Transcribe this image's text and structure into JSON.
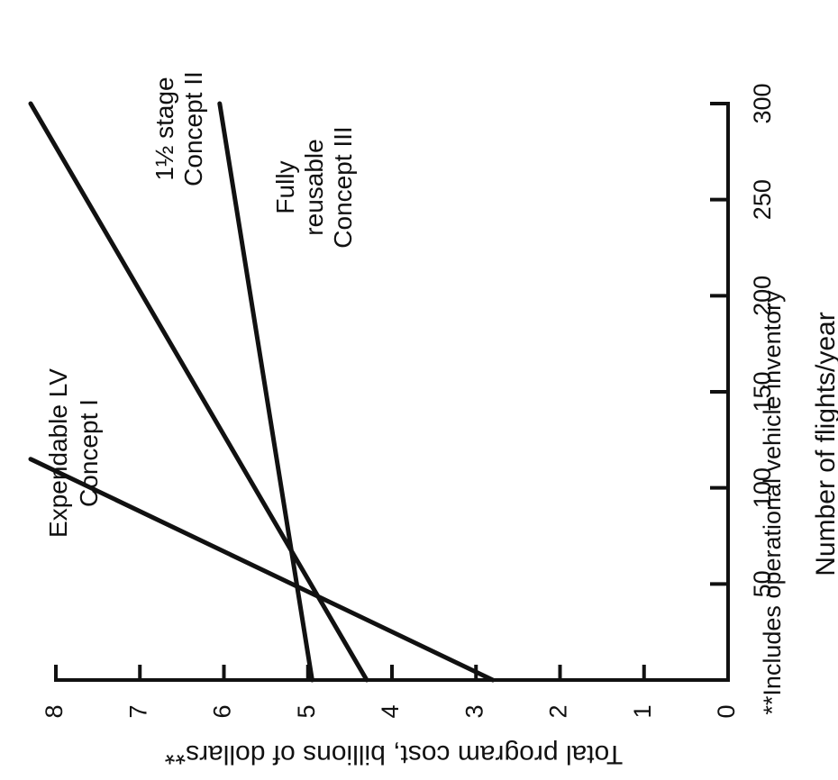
{
  "chart_data": {
    "type": "line",
    "xlabel": "Number of flights/year",
    "ylabel": "Total program cost, billions of dollars**",
    "footnote": "**Includes operational vehicle inventory",
    "xlim": [
      0,
      300
    ],
    "ylim": [
      0,
      8
    ],
    "x_ticks": [
      {
        "value": 50,
        "label": "50"
      },
      {
        "value": 100,
        "label": "100"
      },
      {
        "value": 150,
        "label": "150"
      },
      {
        "value": 200,
        "label": "200"
      },
      {
        "value": 250,
        "label": "250"
      },
      {
        "value": 300,
        "label": "300"
      }
    ],
    "y_ticks": [
      {
        "value": 0,
        "label": "0"
      },
      {
        "value": 1,
        "label": "1"
      },
      {
        "value": 2,
        "label": "2"
      },
      {
        "value": 3,
        "label": "3"
      },
      {
        "value": 4,
        "label": "4"
      },
      {
        "value": 5,
        "label": "5"
      },
      {
        "value": 6,
        "label": "6"
      },
      {
        "value": 7,
        "label": "7"
      },
      {
        "value": 8,
        "label": "8"
      }
    ],
    "series": [
      {
        "name_lines": [
          "Expendable LV",
          "Concept I"
        ],
        "points": [
          {
            "x": 0,
            "y": 2.8
          },
          {
            "x": 115,
            "y": 8.3
          }
        ]
      },
      {
        "name_lines": [
          "1½ stage",
          "Concept II"
        ],
        "points": [
          {
            "x": 0,
            "y": 4.3
          },
          {
            "x": 300,
            "y": 8.3
          }
        ]
      },
      {
        "name_lines": [
          "Fully",
          "reusable",
          "Concept III"
        ],
        "points": [
          {
            "x": 0,
            "y": 4.95
          },
          {
            "x": 300,
            "y": 6.05
          }
        ]
      }
    ],
    "grid": false,
    "legend": "none"
  }
}
